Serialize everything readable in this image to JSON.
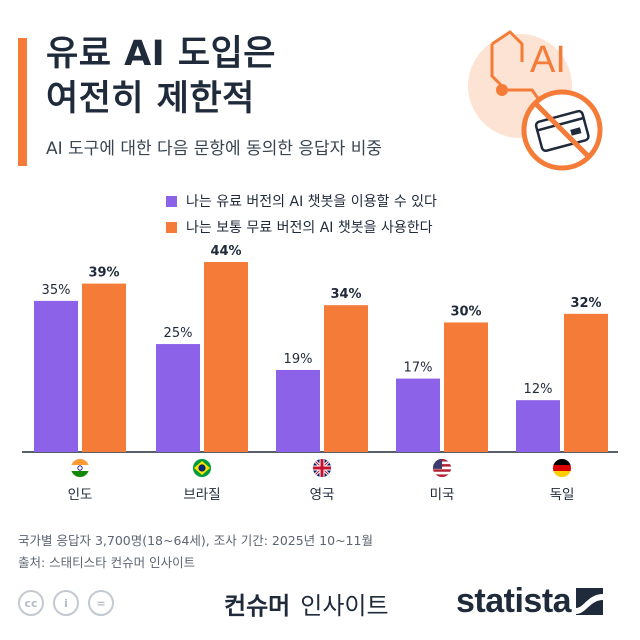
{
  "title_line1": "유료 AI 도입은",
  "title_line2": "여전히 제한적",
  "subtitle": "AI 도구에 대한 다음 문항에 동의한 응답자 비중",
  "illustration_text": "AI",
  "colors": {
    "accent": "#f47b38",
    "paid": "#8c63e8",
    "free": "#f47b38",
    "text": "#1f2a3a"
  },
  "chart_data": {
    "type": "bar",
    "categories": [
      "인도",
      "브라질",
      "영국",
      "미국",
      "독일"
    ],
    "flags": [
      "flag-india",
      "flag-brazil",
      "flag-uk",
      "flag-usa",
      "flag-germany"
    ],
    "series": [
      {
        "name": "나는 유료 버전의 AI 챗봇을 이용할 수 있다",
        "values": [
          35,
          25,
          19,
          17,
          12
        ],
        "color": "#8c63e8"
      },
      {
        "name": "나는 보통 무료 버전의 AI 챗봇을 사용한다",
        "values": [
          39,
          44,
          34,
          30,
          32
        ],
        "color": "#f47b38"
      }
    ],
    "value_labels": [
      [
        "35%",
        "25%",
        "19%",
        "17%",
        "12%"
      ],
      [
        "39%",
        "44%",
        "34%",
        "30%",
        "32%"
      ]
    ],
    "ylim": [
      0,
      44
    ],
    "grid": false,
    "legend_position": "top"
  },
  "footer": {
    "note": "국가별 응답자 3,700명(18~64세), 조사 기간: 2025년 10~11월",
    "source": "출처: 스태티스타 컨슈머 인사이트",
    "brand_bold": "컨슈머",
    "brand_light": "인사이트",
    "statista": "statista",
    "cc": "cc",
    "person": "i",
    "equal": "="
  }
}
